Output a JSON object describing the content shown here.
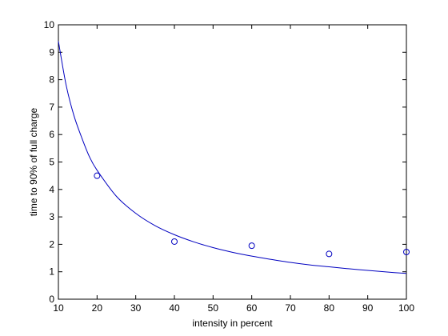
{
  "chart_data": {
    "type": "scatter",
    "title": "",
    "xlabel": "intensity in percent",
    "ylabel": "time to 90% of full charge",
    "xlim": [
      10,
      100
    ],
    "ylim": [
      0,
      10
    ],
    "x_ticks": [
      10,
      20,
      30,
      40,
      50,
      60,
      70,
      80,
      90,
      100
    ],
    "y_ticks": [
      0,
      1,
      2,
      3,
      4,
      5,
      6,
      7,
      8,
      9,
      10
    ],
    "grid": false,
    "legend": "none",
    "series": [
      {
        "type": "scatter",
        "marker": "circle-open",
        "color": "#0000c0",
        "x": [
          20,
          40,
          60,
          80,
          100
        ],
        "y": [
          4.5,
          2.1,
          1.95,
          1.65,
          1.72
        ]
      },
      {
        "type": "line",
        "color": "#0000c0",
        "x": [
          10,
          12,
          14,
          16,
          18,
          20,
          25,
          30,
          35,
          40,
          45,
          50,
          55,
          60,
          65,
          70,
          75,
          80,
          85,
          90,
          95,
          100
        ],
        "y": [
          9.4,
          7.8,
          6.7,
          5.9,
          5.2,
          4.7,
          3.75,
          3.13,
          2.68,
          2.35,
          2.09,
          1.88,
          1.71,
          1.57,
          1.45,
          1.34,
          1.25,
          1.18,
          1.11,
          1.05,
          0.99,
          0.94
        ]
      }
    ]
  }
}
